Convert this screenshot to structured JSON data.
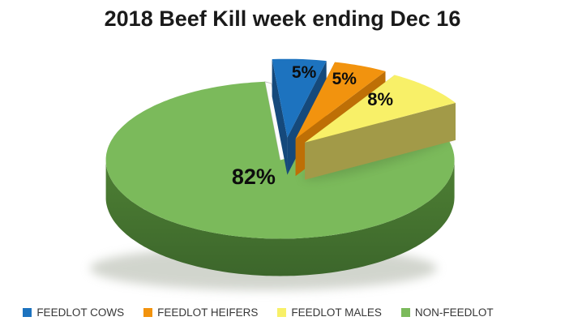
{
  "page": {
    "background": "#FFFFFF"
  },
  "chart_data": {
    "type": "pie",
    "variant": "3d-exploded-pie",
    "title": "2018 Beef Kill week ending Dec 16",
    "legend_position": "bottom",
    "grid": false,
    "label_color": "#0D0D0D",
    "legend_text_color": "#373737",
    "slices": [
      {
        "label": "FEEDLOT COWS",
        "value": 5,
        "display_label": "5%",
        "color": "#1D73BF",
        "side_color": "#15497B"
      },
      {
        "label": "FEEDLOT HEIFERS",
        "value": 5,
        "display_label": "5%",
        "color": "#F2930E",
        "side_color": "#BE6F06"
      },
      {
        "label": "FEEDLOT MALES",
        "value": 8,
        "display_label": "8%",
        "color": "#F8F068",
        "side_color": "#A29A48"
      },
      {
        "label": "NON-FEEDLOT",
        "value": 82,
        "display_label": "82%",
        "color": "#7BBA5B",
        "side_color": "#4E8034",
        "side_color_bottom": "#3C662B",
        "notch_wall_color": "#FCFCFC",
        "notch_wall_stroke": "#BDBDBD"
      }
    ]
  }
}
